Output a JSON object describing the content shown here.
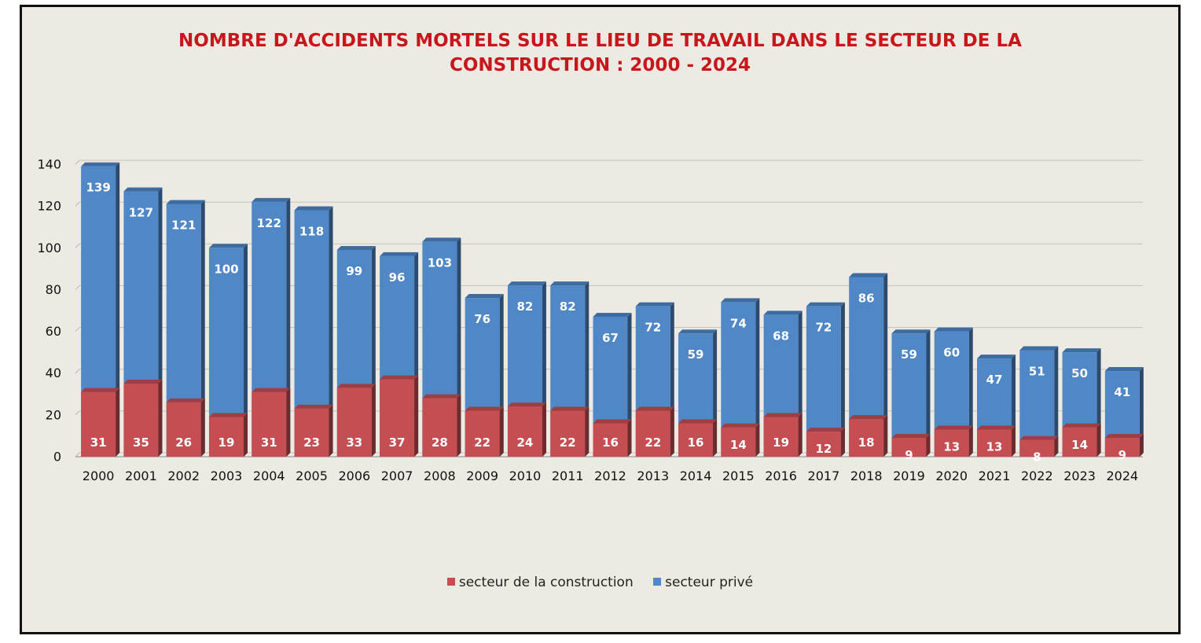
{
  "chart_data": {
    "type": "bar",
    "title_lines": [
      "NOMBRE D'ACCIDENTS MORTELS SUR LE LIEU DE TRAVAIL DANS LE SECTEUR DE LA",
      "CONSTRUCTION : 2000 - 2024"
    ],
    "categories": [
      "2000",
      "2001",
      "2002",
      "2003",
      "2004",
      "2005",
      "2006",
      "2007",
      "2008",
      "2009",
      "2010",
      "2011",
      "2012",
      "2013",
      "2014",
      "2015",
      "2016",
      "2017",
      "2018",
      "2019",
      "2020",
      "2021",
      "2022",
      "2023",
      "2024"
    ],
    "series": [
      {
        "name": "secteur privé",
        "color": "#4f87c7",
        "values": [
          139,
          127,
          121,
          100,
          122,
          118,
          99,
          96,
          103,
          76,
          82,
          82,
          67,
          72,
          59,
          74,
          68,
          72,
          86,
          59,
          60,
          47,
          51,
          50,
          41
        ]
      },
      {
        "name": "secteur de la construction",
        "color": "#c44e52",
        "values": [
          31,
          35,
          26,
          19,
          31,
          23,
          33,
          37,
          28,
          22,
          24,
          22,
          16,
          22,
          16,
          14,
          19,
          12,
          18,
          9,
          13,
          13,
          8,
          14,
          9
        ]
      }
    ],
    "ylim": [
      0,
      140
    ],
    "yticks": [
      0,
      20,
      40,
      60,
      80,
      100,
      120,
      140
    ],
    "grid": true,
    "legend_position": "bottom",
    "legend": [
      {
        "name": "secteur de la construction",
        "color": "#c44e52"
      },
      {
        "name": "secteur privé",
        "color": "#4f87c7"
      }
    ],
    "background": "#edeae3"
  }
}
